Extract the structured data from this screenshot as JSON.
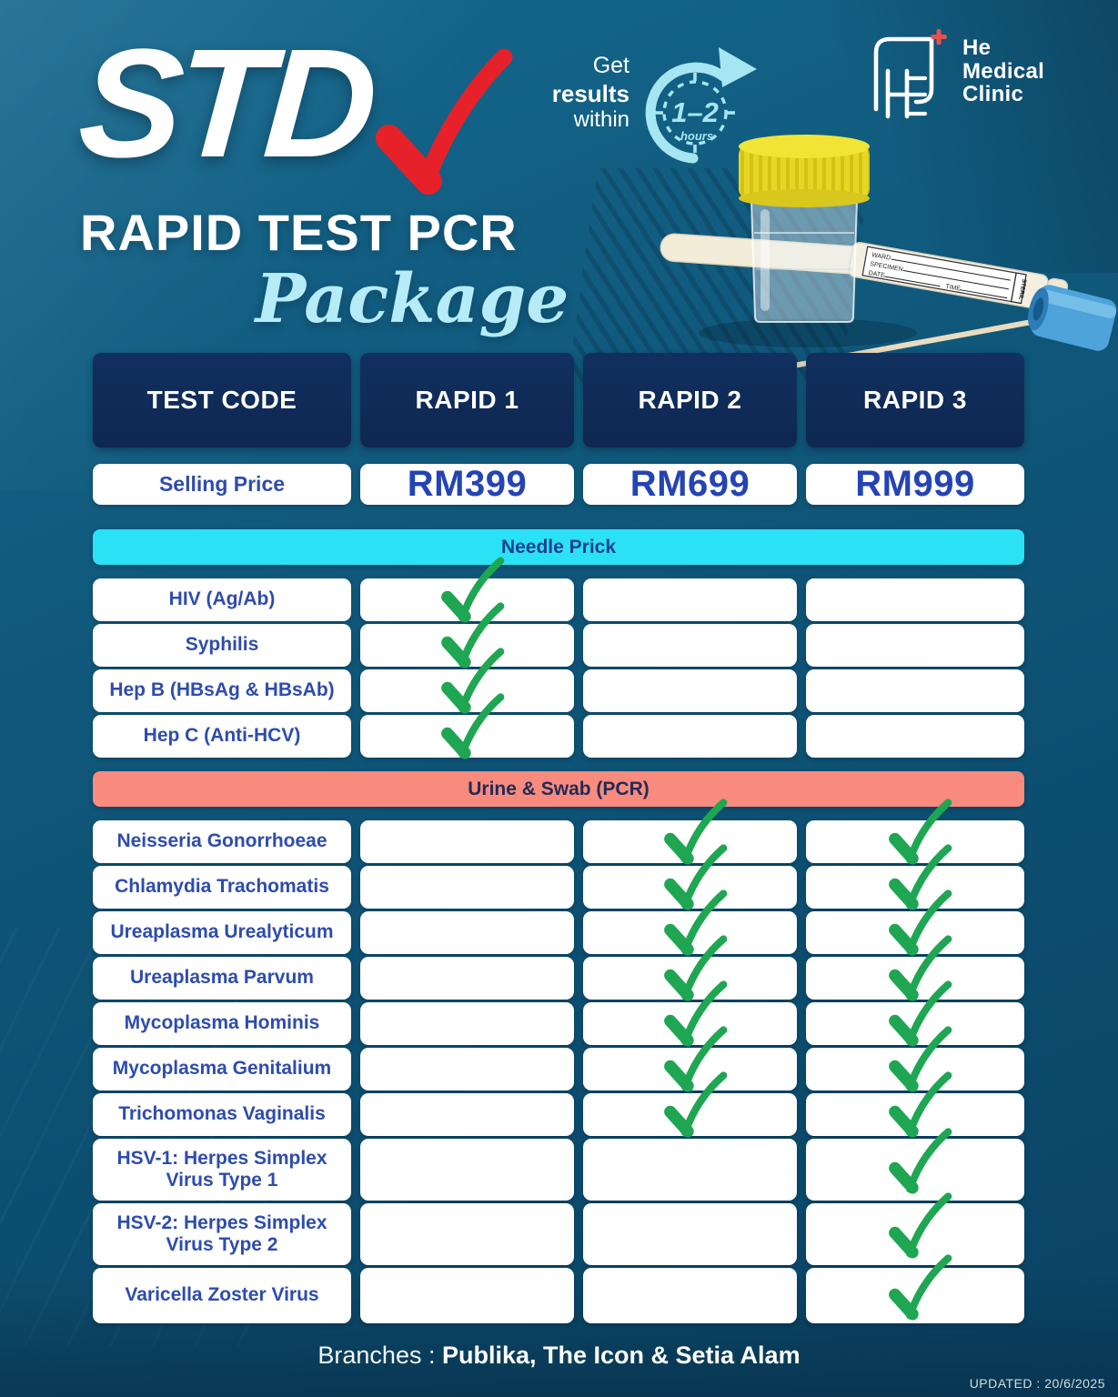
{
  "title": {
    "main": "STD",
    "sub": "RAPID TEST PCR",
    "script": "Package"
  },
  "badge": {
    "get": "Get",
    "results": "results",
    "within": "within",
    "duration": "1–2",
    "unit": "hours"
  },
  "logo": {
    "line1": "He",
    "line2": "Medical",
    "line3": "Clinic"
  },
  "table": {
    "headers": [
      "TEST CODE",
      "RAPID 1",
      "RAPID 2",
      "RAPID 3"
    ],
    "price": {
      "label": "Selling Price",
      "values": [
        "RM399",
        "RM699",
        "RM999"
      ]
    },
    "sections": [
      {
        "title": "Needle Prick",
        "type": "needle",
        "rows": [
          {
            "label": "HIV (Ag/Ab)",
            "checks": [
              true,
              false,
              false
            ]
          },
          {
            "label": "Syphilis",
            "checks": [
              true,
              false,
              false
            ]
          },
          {
            "label": "Hep B (HBsAg & HBsAb)",
            "checks": [
              true,
              false,
              false
            ]
          },
          {
            "label": "Hep C (Anti-HCV)",
            "checks": [
              true,
              false,
              false
            ]
          }
        ]
      },
      {
        "title": "Urine & Swab (PCR)",
        "type": "urine",
        "rows": [
          {
            "label": "Neisseria Gonorrhoeae",
            "checks": [
              false,
              true,
              true
            ]
          },
          {
            "label": "Chlamydia Trachomatis",
            "checks": [
              false,
              true,
              true
            ]
          },
          {
            "label": "Ureaplasma Urealyticum",
            "checks": [
              false,
              true,
              true
            ]
          },
          {
            "label": "Ureaplasma Parvum",
            "checks": [
              false,
              true,
              true
            ]
          },
          {
            "label": "Mycoplasma Hominis",
            "checks": [
              false,
              true,
              true
            ]
          },
          {
            "label": "Mycoplasma Genitalium",
            "checks": [
              false,
              true,
              true
            ]
          },
          {
            "label": "Trichomonas Vaginalis",
            "checks": [
              false,
              true,
              true
            ]
          },
          {
            "label": "HSV-1: Herpes Simplex Virus Type 1",
            "checks": [
              false,
              false,
              true
            ],
            "tall": true
          },
          {
            "label": "HSV-2: Herpes Simplex Virus Type 2",
            "checks": [
              false,
              false,
              true
            ],
            "tall": true
          },
          {
            "label": "Varicella Zoster Virus",
            "checks": [
              false,
              false,
              true
            ],
            "med": true
          }
        ]
      }
    ]
  },
  "footer": {
    "branches_label": "Branches :",
    "branches_value": "Publika, The Icon & Setia Alam",
    "updated": "UPDATED : 20/6/2025"
  },
  "colors": {
    "background_teal": "#0e567c",
    "header_navy": "#0f2a5a",
    "needle_cyan": "#2be1f6",
    "urine_salmon": "#f98b7e",
    "check_green": "#1fa653",
    "text_blue": "#2e4cad",
    "price_blue": "#2444b4",
    "title_check_red": "#e62129",
    "accent_light_blue": "#a5e6f2"
  }
}
